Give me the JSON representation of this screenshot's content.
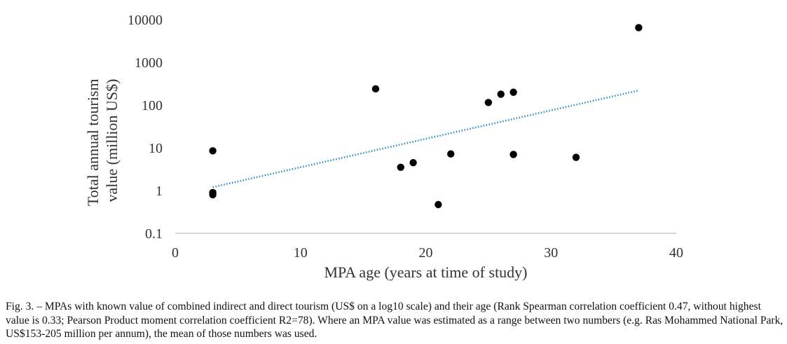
{
  "chart_data": {
    "type": "scatter",
    "title": "",
    "xlabel": "MPA age (years at time of study)",
    "ylabel_lines": [
      "Total annual tourism",
      "value (million US$)"
    ],
    "xlim": [
      0,
      40
    ],
    "ylim": [
      0.1,
      10000
    ],
    "y_scale": "log10",
    "x_ticks": [
      "0",
      "10",
      "20",
      "30",
      "40"
    ],
    "x_tick_values": [
      0,
      10,
      20,
      30,
      40
    ],
    "y_ticks": [
      "0.1",
      "1",
      "10",
      "100",
      "1000",
      "10000"
    ],
    "y_tick_values": [
      0.1,
      1,
      10,
      100,
      1000,
      10000
    ],
    "grid": false,
    "legend": "none",
    "points": [
      {
        "x": 3,
        "y": 8.5
      },
      {
        "x": 3,
        "y": 0.9
      },
      {
        "x": 3,
        "y": 0.8
      },
      {
        "x": 16,
        "y": 240
      },
      {
        "x": 18,
        "y": 3.5
      },
      {
        "x": 19,
        "y": 4.5
      },
      {
        "x": 21,
        "y": 0.47
      },
      {
        "x": 22,
        "y": 7.2
      },
      {
        "x": 25,
        "y": 115
      },
      {
        "x": 26,
        "y": 180
      },
      {
        "x": 27,
        "y": 200
      },
      {
        "x": 27,
        "y": 7
      },
      {
        "x": 32,
        "y": 6
      },
      {
        "x": 37,
        "y": 6500
      }
    ],
    "trendline": {
      "type": "exponential",
      "x": [
        3,
        37
      ],
      "y": [
        1.2,
        220
      ]
    },
    "colors": {
      "points": "#000000",
      "trendline": "#2e8bc0",
      "axes": "#bfbfbf"
    }
  },
  "caption": "Fig. 3. – MPAs with known value of combined indirect and direct tourism (US$ on a log10 scale) and their age (Rank Spearman correlation coefficient 0.47, without highest value is 0.33; Pearson Product moment correlation coefficient R2=78). Where an MPA value was estimated as a range between two numbers (e.g. Ras Mohammed National Park, US$153-205 million per annum), the mean of those numbers was used."
}
